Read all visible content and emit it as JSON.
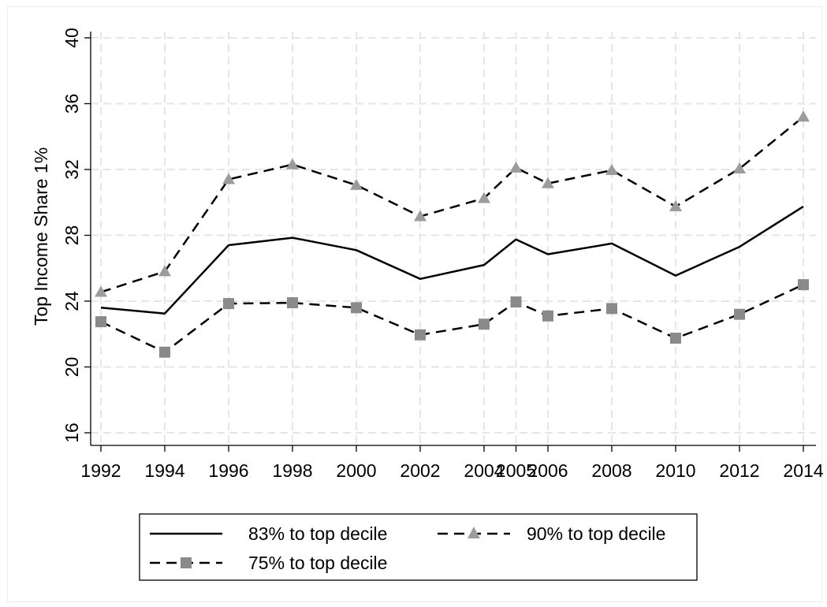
{
  "chart_data": {
    "type": "line",
    "title": "",
    "xlabel": "",
    "ylabel": "Top Income Share 1%",
    "x": [
      1992,
      1994,
      1996,
      1998,
      2000,
      2002,
      2004,
      2005,
      2006,
      2008,
      2010,
      2012,
      2014
    ],
    "x_ticks": [
      "1992",
      "1994",
      "1996",
      "1998",
      "2000",
      "2002",
      "2004",
      "2005",
      "2006",
      "2008",
      "2010",
      "2012",
      "2014"
    ],
    "y_ticks": [
      16,
      20,
      24,
      28,
      32,
      36,
      40
    ],
    "xlim": [
      1992,
      2014
    ],
    "ylim": [
      15.5,
      40.5
    ],
    "grid": true,
    "legend_position": "bottom",
    "series": [
      {
        "name": "83% to top decile",
        "style": "solid",
        "marker": "none",
        "color": "#000000",
        "values": [
          23.6,
          23.25,
          27.4,
          27.85,
          27.1,
          25.35,
          26.2,
          27.75,
          26.85,
          27.5,
          25.55,
          27.3,
          29.75
        ]
      },
      {
        "name": "90% to top decile",
        "style": "dashed",
        "marker": "triangle",
        "color": "#000000",
        "marker_color": "#9c9c9c",
        "values": [
          24.55,
          25.8,
          31.4,
          32.3,
          31.05,
          29.15,
          30.25,
          32.1,
          31.15,
          31.95,
          29.75,
          32.05,
          35.2
        ]
      },
      {
        "name": "75% to top decile",
        "style": "dashed",
        "marker": "square",
        "color": "#000000",
        "marker_color": "#8a8a8a",
        "values": [
          22.75,
          20.9,
          23.85,
          23.9,
          23.6,
          21.95,
          22.6,
          23.95,
          23.1,
          23.55,
          21.75,
          23.2,
          25.0
        ]
      }
    ]
  }
}
